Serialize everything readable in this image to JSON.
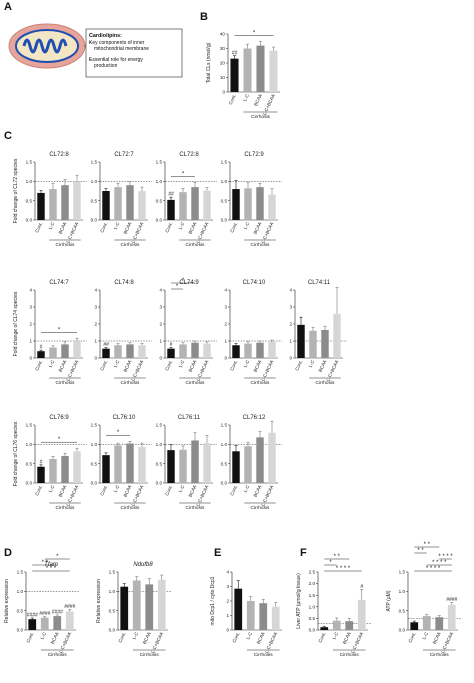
{
  "panels": {
    "A": {
      "label": "A",
      "box": {
        "title": "Cardiolipins:",
        "bullets": [
          "Key components of inner mitochondrial membrane",
          "Essential role for energy production"
        ],
        "bullet_lines": [
          [
            "Key components of inner",
            "mitochondrial membrane"
          ],
          [
            "Essential role for energy",
            "production"
          ]
        ]
      }
    },
    "B": {
      "label": "B"
    },
    "C": {
      "label": "C"
    },
    "D": {
      "label": "D"
    },
    "E": {
      "label": "E"
    },
    "F": {
      "label": "F"
    }
  },
  "colors": {
    "cont": "#111111",
    "lc": "#b3b3b3",
    "bcaa": "#8c8c8c",
    "lcbcaa": "#d6d6d6",
    "mito_outer": "#e6a49a",
    "mito_inner": "#1f4fb0"
  },
  "categories": [
    "Cont.",
    "L-C",
    "BCAA",
    "L-C+BCAA"
  ],
  "group_label": "Cirrhosis",
  "chart_data": [
    {
      "id": "B",
      "type": "bar",
      "title": "",
      "ylabel": "Total CLs (nmol/g)",
      "ylim": [
        0,
        40
      ],
      "yticks": [
        0,
        10,
        20,
        30,
        40
      ],
      "values": [
        23,
        30,
        32,
        28.5
      ],
      "errors": [
        2,
        3,
        3,
        2.5
      ],
      "dashed": null,
      "marks": [
        "##",
        "",
        "",
        ""
      ],
      "sig": [
        {
          "from": 0,
          "to": 3,
          "text": "*"
        }
      ]
    },
    {
      "id": "C72_8a",
      "type": "bar",
      "title": "CL72:8",
      "ylabel": "Fold change of CL72 species",
      "ylim": [
        0,
        1.5
      ],
      "yticks": [
        0.0,
        0.5,
        1.0,
        1.5
      ],
      "values": [
        0.7,
        0.8,
        0.9,
        1.0
      ],
      "errors": [
        0.06,
        0.15,
        0.15,
        0.15
      ],
      "dashed": 1.0,
      "marks": [
        "",
        "",
        "",
        ""
      ],
      "sig": []
    },
    {
      "id": "C72_7",
      "type": "bar",
      "title": "CL72:7",
      "ylabel": "",
      "ylim": [
        0,
        1.5
      ],
      "yticks": [
        0.0,
        0.5,
        1.0,
        1.5
      ],
      "values": [
        0.75,
        0.85,
        0.9,
        0.75
      ],
      "errors": [
        0.06,
        0.1,
        0.1,
        0.1
      ],
      "dashed": 1.0,
      "marks": [
        "",
        "",
        "",
        ""
      ],
      "sig": []
    },
    {
      "id": "C72_8b",
      "type": "bar",
      "title": "CL72:8",
      "ylabel": "",
      "ylim": [
        0,
        1.5
      ],
      "yticks": [
        0.0,
        0.5,
        1.0,
        1.5
      ],
      "values": [
        0.52,
        0.72,
        0.85,
        0.76
      ],
      "errors": [
        0.07,
        0.1,
        0.12,
        0.08
      ],
      "dashed": 1.0,
      "marks": [
        "##",
        "",
        "",
        ""
      ],
      "sig": [
        {
          "from": 0,
          "to": 2,
          "text": "*"
        }
      ]
    },
    {
      "id": "C72_9",
      "type": "bar",
      "title": "CL72:9",
      "ylabel": "",
      "ylim": [
        0,
        1.5
      ],
      "yticks": [
        0.0,
        0.5,
        1.0,
        1.5
      ],
      "values": [
        0.8,
        0.82,
        0.85,
        0.66
      ],
      "errors": [
        0.22,
        0.15,
        0.1,
        0.15
      ],
      "dashed": 1.0,
      "marks": [
        "",
        "",
        "",
        ""
      ],
      "sig": []
    },
    {
      "id": "C74_7",
      "type": "bar",
      "title": "CL74:7",
      "ylabel": "Fold change of CL74 species",
      "ylim": [
        0,
        4
      ],
      "yticks": [
        0,
        1,
        2,
        3,
        4
      ],
      "values": [
        0.4,
        0.62,
        0.8,
        1.0
      ],
      "errors": [
        0.06,
        0.1,
        0.15,
        0.15
      ],
      "dashed": 1.0,
      "marks": [
        "#",
        "",
        "",
        ""
      ],
      "sig": [
        {
          "from": 0,
          "to": 3,
          "text": "*"
        }
      ]
    },
    {
      "id": "C74_8",
      "type": "bar",
      "title": "CL74:8",
      "ylabel": "",
      "ylim": [
        0,
        4
      ],
      "yticks": [
        0,
        1,
        2,
        3,
        4
      ],
      "values": [
        0.55,
        0.75,
        0.8,
        0.75
      ],
      "errors": [
        0.06,
        0.1,
        0.1,
        0.1
      ],
      "dashed": 1.0,
      "marks": [
        "##",
        "",
        "",
        ""
      ],
      "sig": []
    },
    {
      "id": "C74_9",
      "type": "bar",
      "title": "CL74:9",
      "ylabel": "",
      "ylim": [
        0,
        4
      ],
      "yticks": [
        0,
        1,
        2,
        3,
        4
      ],
      "values": [
        0.55,
        0.8,
        0.9,
        0.85
      ],
      "errors": [
        0.06,
        0.1,
        0.1,
        0.1
      ],
      "dashed": 1.0,
      "marks": [
        "#",
        "",
        "",
        ""
      ],
      "sig": [
        {
          "from": 0,
          "to": 1,
          "text": "*"
        },
        {
          "from": 0,
          "to": 2,
          "text": "*"
        }
      ]
    },
    {
      "id": "C74_10",
      "type": "bar",
      "title": "CL74:10",
      "ylabel": "",
      "ylim": [
        0,
        4
      ],
      "yticks": [
        0,
        1,
        2,
        3,
        4
      ],
      "values": [
        0.75,
        0.85,
        0.9,
        0.95
      ],
      "errors": [
        0.1,
        0.1,
        0.1,
        0.1
      ],
      "dashed": 1.0,
      "marks": [
        "",
        "",
        "",
        ""
      ],
      "sig": []
    },
    {
      "id": "C74_11",
      "type": "bar",
      "title": "CL74:11",
      "ylabel": "",
      "ylim": [
        0,
        4
      ],
      "yticks": [
        0,
        1,
        2,
        3,
        4
      ],
      "values": [
        1.95,
        1.6,
        1.65,
        2.6
      ],
      "errors": [
        0.45,
        0.2,
        0.2,
        1.55
      ],
      "dashed": 1.0,
      "marks": [
        "",
        "",
        "",
        ""
      ],
      "sig": []
    },
    {
      "id": "C76_9",
      "type": "bar",
      "title": "CL76:9",
      "ylabel": "Fold change of CL76 species",
      "ylim": [
        0,
        1.5
      ],
      "yticks": [
        0.0,
        0.5,
        1.0,
        1.5
      ],
      "values": [
        0.42,
        0.62,
        0.7,
        0.82
      ],
      "errors": [
        0.05,
        0.07,
        0.07,
        0.08
      ],
      "dashed": 1.0,
      "marks": [
        "#",
        "",
        "",
        ""
      ],
      "sig": [
        {
          "from": 0,
          "to": 3,
          "text": "*"
        }
      ]
    },
    {
      "id": "C76_10",
      "type": "bar",
      "title": "CL76:10",
      "ylabel": "",
      "ylim": [
        0,
        1.5
      ],
      "yticks": [
        0.0,
        0.5,
        1.0,
        1.5
      ],
      "values": [
        0.72,
        0.97,
        1.02,
        0.93
      ],
      "errors": [
        0.06,
        0.06,
        0.06,
        0.1
      ],
      "dashed": 1.0,
      "marks": [
        "",
        "",
        "",
        ""
      ],
      "sig": [
        {
          "from": 0,
          "to": 2,
          "text": "*"
        }
      ]
    },
    {
      "id": "C76_11",
      "type": "bar",
      "title": "CL76:11",
      "ylabel": "",
      "ylim": [
        0,
        1.5
      ],
      "yticks": [
        0.0,
        0.5,
        1.0,
        1.5
      ],
      "values": [
        0.85,
        0.86,
        1.1,
        1.03
      ],
      "errors": [
        0.15,
        0.1,
        0.2,
        0.2
      ],
      "dashed": 1.0,
      "marks": [
        "",
        "",
        "",
        ""
      ],
      "sig": []
    },
    {
      "id": "C76_12",
      "type": "bar",
      "title": "CL76:12",
      "ylabel": "",
      "ylim": [
        0,
        1.5
      ],
      "yticks": [
        0.0,
        0.5,
        1.0,
        1.5
      ],
      "values": [
        0.82,
        0.95,
        1.18,
        1.3
      ],
      "errors": [
        0.15,
        0.1,
        0.15,
        0.3
      ],
      "dashed": 1.0,
      "marks": [
        "",
        "",
        "",
        ""
      ],
      "sig": []
    },
    {
      "id": "D_Tfam",
      "type": "bar",
      "title": "Tfam",
      "italic": true,
      "ylabel": "Relative expression",
      "ylim": [
        0,
        1.5
      ],
      "yticks": [
        0.0,
        0.5,
        1.0,
        1.5
      ],
      "values": [
        0.28,
        0.32,
        0.36,
        0.48
      ],
      "errors": [
        0.03,
        0.03,
        0.03,
        0.05
      ],
      "dashed": 1.0,
      "marks": [
        "####",
        "####",
        "####",
        "####"
      ],
      "sig": [
        {
          "from": 0,
          "to": 3,
          "text": "* * *"
        },
        {
          "from": 0,
          "to": 2,
          "text": "* *"
        },
        {
          "from": 1,
          "to": 3,
          "text": "*"
        }
      ]
    },
    {
      "id": "D_Ndufb8",
      "type": "bar",
      "title": "Ndufb8",
      "italic": true,
      "ylabel": "Relative expression",
      "ylim": [
        0,
        1.5
      ],
      "yticks": [
        0.0,
        0.5,
        1.0,
        1.5
      ],
      "values": [
        1.12,
        1.28,
        1.18,
        1.3
      ],
      "errors": [
        0.08,
        0.1,
        0.15,
        0.12
      ],
      "dashed": 1.0,
      "marks": [
        "",
        "",
        "",
        ""
      ],
      "sig": []
    },
    {
      "id": "E",
      "type": "bar",
      "title": "",
      "ylabel": "mito Dcp1 / cyto Dcp1",
      "ylim": [
        0,
        4
      ],
      "yticks": [
        0,
        1,
        2,
        3,
        4
      ],
      "values": [
        2.85,
        2.0,
        1.85,
        1.6
      ],
      "errors": [
        0.55,
        0.3,
        0.25,
        0.3
      ],
      "dashed": null,
      "marks": [
        "",
        "",
        "",
        ""
      ],
      "sig": []
    },
    {
      "id": "F_liver",
      "type": "bar",
      "title": "",
      "ylabel": "Liver ATP (μmol/g tissue)",
      "ylim": [
        0,
        2.5
      ],
      "yticks": [
        0.0,
        0.5,
        1.0,
        1.5,
        2.0,
        2.5
      ],
      "values": [
        0.12,
        0.4,
        0.38,
        1.3
      ],
      "errors": [
        0.03,
        0.12,
        0.12,
        0.45
      ],
      "dashed": 0.28,
      "marks": [
        "",
        "",
        "",
        "#"
      ],
      "sig": [
        {
          "from": 0,
          "to": 3,
          "text": "* * * *"
        },
        {
          "from": 0,
          "to": 1,
          "text": "*"
        },
        {
          "from": 0,
          "to": 2,
          "text": "* *"
        }
      ]
    },
    {
      "id": "F_serum",
      "type": "bar",
      "title": "",
      "ylabel": "ATP (μM)",
      "ylim": [
        0,
        1.5
      ],
      "yticks": [
        0.0,
        0.5,
        1.0,
        1.5
      ],
      "values": [
        0.2,
        0.36,
        0.33,
        0.65
      ],
      "errors": [
        0.03,
        0.04,
        0.04,
        0.06
      ],
      "dashed": 0.3,
      "marks": [
        "",
        "",
        "",
        "####"
      ],
      "sig": [
        {
          "from": 0,
          "to": 3,
          "text": "* * * *"
        },
        {
          "from": 1,
          "to": 3,
          "text": "* * * *"
        },
        {
          "from": 2,
          "to": 3,
          "text": "* * * *"
        },
        {
          "from": 0,
          "to": 1,
          "text": "* *"
        },
        {
          "from": 0,
          "to": 2,
          "text": "* *"
        }
      ]
    }
  ]
}
